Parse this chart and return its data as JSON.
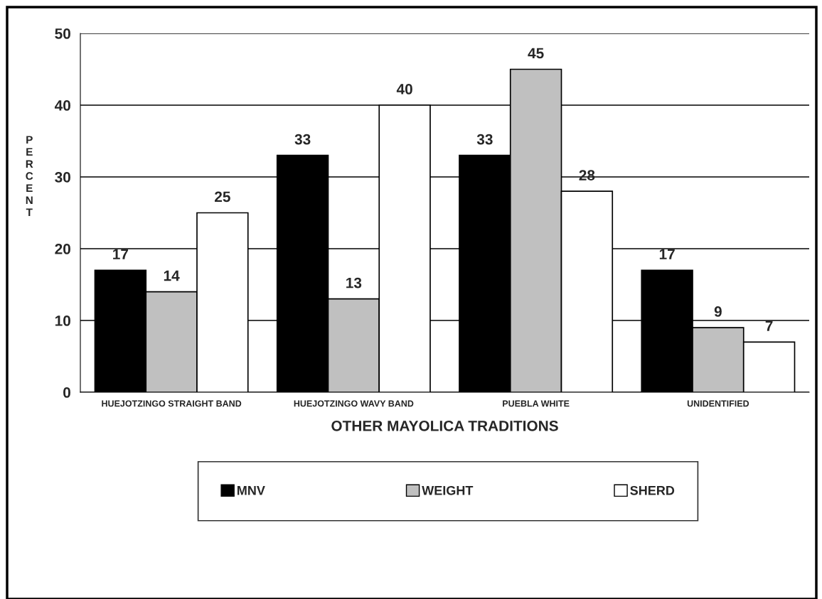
{
  "chart_data": {
    "type": "bar",
    "xlabel": "OTHER MAYOLICA TRADITIONS",
    "ylabel": "PERCENT",
    "categories": [
      "HUEJOTZINGO STRAIGHT BAND",
      "HUEJOTZINGO WAVY BAND",
      "PUEBLA WHITE",
      "UNIDENTIFIED"
    ],
    "series": [
      {
        "name": "MNV",
        "color": "#000000",
        "values": [
          17,
          33,
          33,
          17
        ]
      },
      {
        "name": "WEIGHT",
        "color": "#c0c0c0",
        "values": [
          14,
          13,
          45,
          9
        ]
      },
      {
        "name": "SHERD",
        "color": "#ffffff",
        "values": [
          25,
          40,
          28,
          7
        ]
      }
    ],
    "ylim": [
      0,
      50
    ],
    "yticks": [
      0,
      10,
      20,
      30,
      40,
      50
    ],
    "grid": "y",
    "legend": "bottom",
    "data_labels": true
  }
}
